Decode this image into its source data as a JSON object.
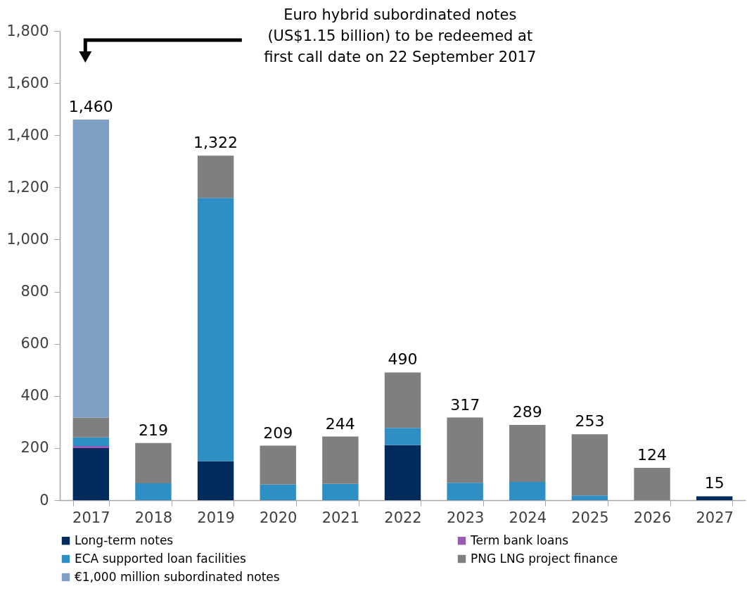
{
  "chart_data": {
    "type": "bar",
    "stacked": true,
    "categories": [
      "2017",
      "2018",
      "2019",
      "2020",
      "2021",
      "2022",
      "2023",
      "2024",
      "2025",
      "2026",
      "2027"
    ],
    "series": [
      {
        "name": "Long-term notes",
        "color": "#002b5c",
        "values": [
          200,
          0,
          150,
          0,
          0,
          211,
          0,
          0,
          0,
          0,
          15
        ]
      },
      {
        "name": "Term bank loans",
        "color": "#9b59b6",
        "values": [
          8,
          0,
          0,
          0,
          0,
          0,
          0,
          0,
          0,
          0,
          0
        ]
      },
      {
        "name": "ECA supported loan facilities",
        "color": "#2e8fc4",
        "values": [
          33,
          65,
          1010,
          60,
          63,
          66,
          67,
          70,
          18,
          0,
          0
        ]
      },
      {
        "name": "PNG LNG project finance",
        "color": "#7f7f7f",
        "values": [
          76,
          154,
          162,
          149,
          181,
          213,
          250,
          219,
          235,
          124,
          0
        ]
      },
      {
        "name": "€1,000 million subordinated notes",
        "color": "#7f9fc4",
        "values": [
          1143,
          0,
          0,
          0,
          0,
          0,
          0,
          0,
          0,
          0,
          0
        ]
      }
    ],
    "totals": [
      "1,460",
      "219",
      "1,322",
      "209",
      "244",
      "490",
      "317",
      "289",
      "253",
      "124",
      "15"
    ],
    "ylim": [
      0,
      1800
    ],
    "yticks": [
      0,
      200,
      400,
      600,
      800,
      {
        "value": 1000,
        "label": "1,000"
      },
      {
        "value": 1200,
        "label": "1,200"
      },
      {
        "value": 1400,
        "label": "1,400"
      },
      {
        "value": 1600,
        "label": "1,600"
      },
      {
        "value": 1800,
        "label": "1,800"
      }
    ],
    "grid": false,
    "legend": "bottom",
    "annotations": [
      "Euro hybrid subordinated notes\n(US$1.15 billion) to be redeemed at\nfirst call date on 22 September 2017"
    ]
  }
}
